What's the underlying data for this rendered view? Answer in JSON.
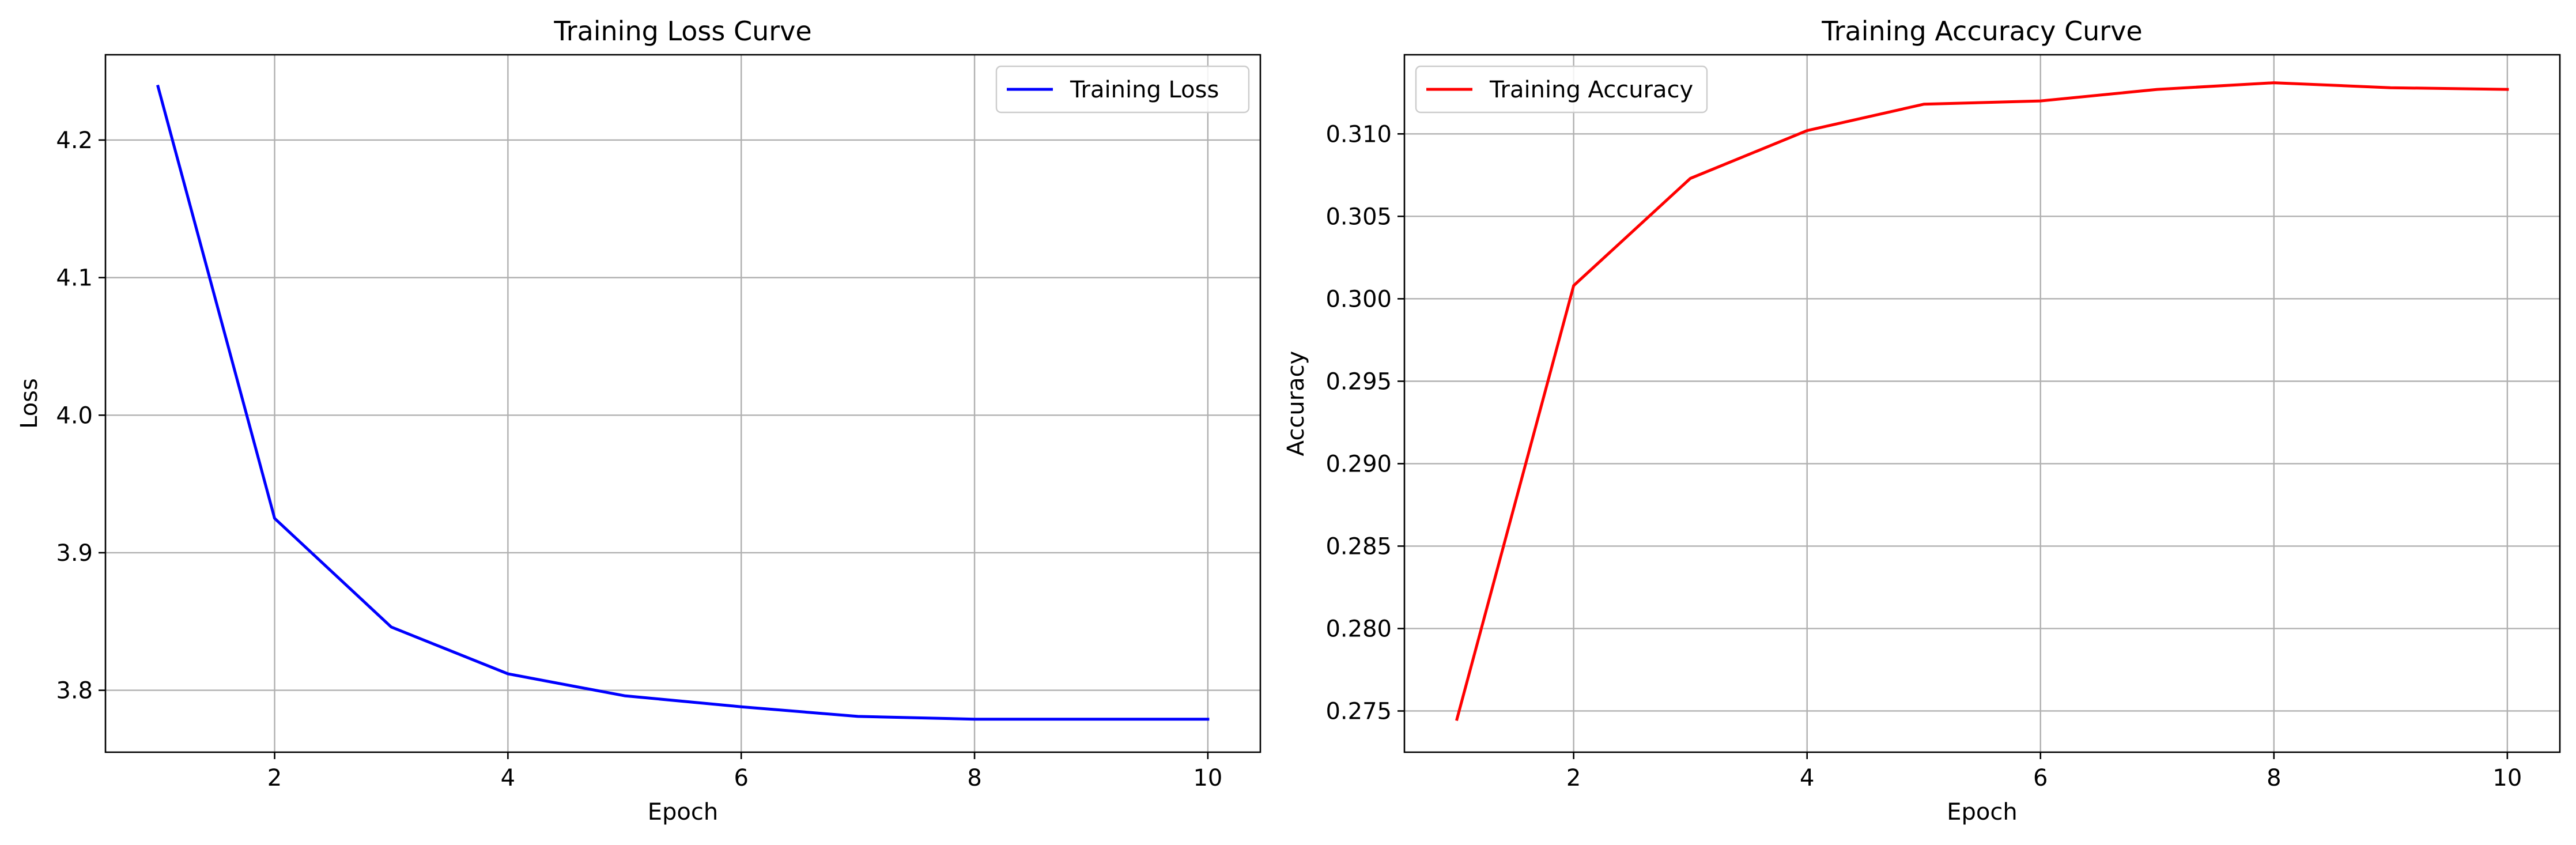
{
  "chart_data": [
    {
      "type": "line",
      "title": "Training Loss Curve",
      "xlabel": "Epoch",
      "ylabel": "Loss",
      "x": [
        1,
        2,
        3,
        4,
        5,
        6,
        7,
        8,
        9,
        10
      ],
      "xlim": [
        0.55,
        10.45
      ],
      "ylim": [
        3.755,
        4.262
      ],
      "xticks": [
        2,
        4,
        6,
        8,
        10
      ],
      "yticks": [
        3.8,
        3.9,
        4.0,
        4.1,
        4.2
      ],
      "xtick_labels": [
        "2",
        "4",
        "6",
        "8",
        "10"
      ],
      "ytick_labels": [
        "3.8",
        "3.9",
        "4.0",
        "4.1",
        "4.2"
      ],
      "grid": true,
      "legend_position": "upper right",
      "series": [
        {
          "name": "Training Loss",
          "color": "#0000ff",
          "values": [
            4.239,
            3.925,
            3.846,
            3.812,
            3.796,
            3.788,
            3.781,
            3.779,
            3.779,
            3.779
          ]
        }
      ]
    },
    {
      "type": "line",
      "title": "Training Accuracy Curve",
      "xlabel": "Epoch",
      "ylabel": "Accuracy",
      "x": [
        1,
        2,
        3,
        4,
        5,
        6,
        7,
        8,
        9,
        10
      ],
      "xlim": [
        0.55,
        10.45
      ],
      "ylim": [
        0.2725,
        0.3148
      ],
      "xticks": [
        2,
        4,
        6,
        8,
        10
      ],
      "yticks": [
        0.275,
        0.28,
        0.285,
        0.29,
        0.295,
        0.3,
        0.305,
        0.31
      ],
      "xtick_labels": [
        "2",
        "4",
        "6",
        "8",
        "10"
      ],
      "ytick_labels": [
        "0.275",
        "0.280",
        "0.285",
        "0.290",
        "0.295",
        "0.300",
        "0.305",
        "0.310"
      ],
      "grid": true,
      "legend_position": "upper left",
      "series": [
        {
          "name": "Training Accuracy",
          "color": "#ff0000",
          "values": [
            0.2745,
            0.3008,
            0.3073,
            0.3102,
            0.3118,
            0.312,
            0.3127,
            0.3131,
            0.3128,
            0.3127
          ]
        }
      ]
    }
  ]
}
